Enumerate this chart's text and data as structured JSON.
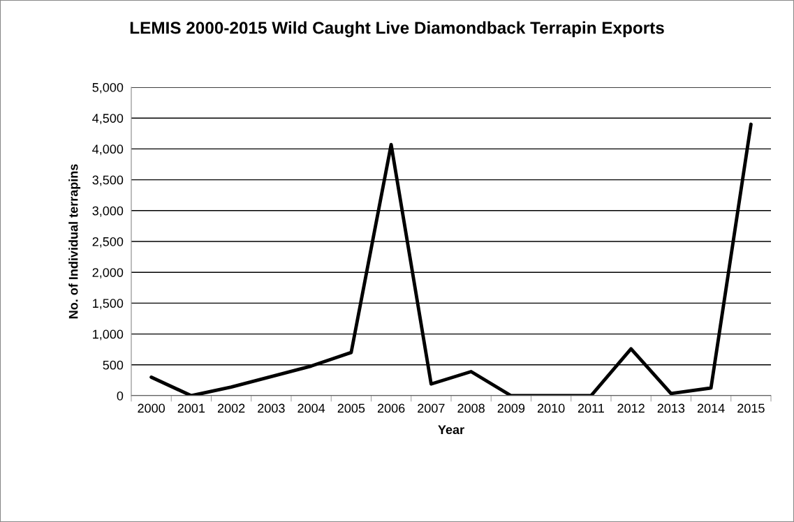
{
  "chart_data": {
    "type": "line",
    "title": "LEMIS 2000-2015 Wild Caught Live Diamondback Terrapin Exports",
    "xlabel": "Year",
    "ylabel": "No. of Individual terrapins",
    "categories": [
      "2000",
      "2001",
      "2002",
      "2003",
      "2004",
      "2005",
      "2006",
      "2007",
      "2008",
      "2009",
      "2010",
      "2011",
      "2012",
      "2013",
      "2014",
      "2015"
    ],
    "series": [
      {
        "color": "#000000",
        "values": [
          300,
          0,
          140,
          310,
          480,
          700,
          4070,
          190,
          390,
          0,
          0,
          0,
          760,
          35,
          125,
          4400
        ]
      }
    ],
    "ylim": [
      0,
      5000
    ],
    "yticks": [
      {
        "value": 0,
        "label": "0"
      },
      {
        "value": 500,
        "label": "500"
      },
      {
        "value": 1000,
        "label": "1,000"
      },
      {
        "value": 1500,
        "label": "1,500"
      },
      {
        "value": 2000,
        "label": "2,000"
      },
      {
        "value": 2500,
        "label": "2,500"
      },
      {
        "value": 3000,
        "label": "3,000"
      },
      {
        "value": 3500,
        "label": "3,500"
      },
      {
        "value": 4000,
        "label": "4,000"
      },
      {
        "value": 4500,
        "label": "4,500"
      },
      {
        "value": 5000,
        "label": "5,000"
      }
    ],
    "grid": "y",
    "legend": false,
    "marker": "none",
    "line_style": "solid"
  }
}
